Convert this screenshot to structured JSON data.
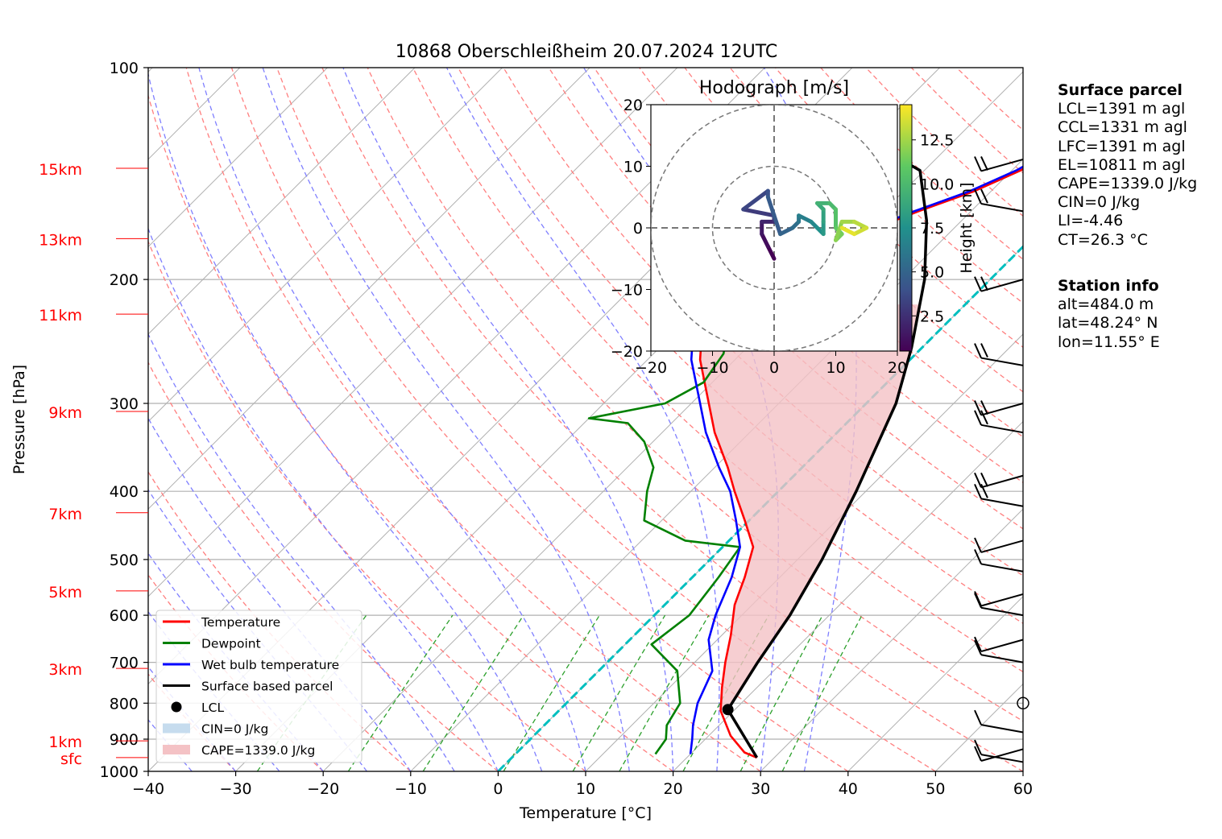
{
  "chart_data": {
    "type": "line",
    "title": "10868 Oberschleißheim 20.07.2024 12UTC",
    "xlabel": "Temperature [°C]",
    "ylabel": "Pressure [hPa]",
    "xlim": [
      -40,
      60
    ],
    "ylim": [
      1000,
      100
    ],
    "y_scale": "log",
    "x_ticks": [
      -40,
      -30,
      -20,
      -10,
      0,
      10,
      20,
      30,
      40,
      50,
      60
    ],
    "y_ticks": [
      100,
      200,
      300,
      400,
      500,
      600,
      700,
      800,
      900,
      1000
    ],
    "height_labels": [
      {
        "label": "15km",
        "p": 139
      },
      {
        "label": "13km",
        "p": 175
      },
      {
        "label": "11km",
        "p": 224
      },
      {
        "label": "9km",
        "p": 308
      },
      {
        "label": "7km",
        "p": 429
      },
      {
        "label": "5km",
        "p": 554
      },
      {
        "label": "3km",
        "p": 714
      },
      {
        "label": "1km",
        "p": 905
      },
      {
        "label": "sfc",
        "p": 956
      }
    ],
    "series": [
      {
        "name": "Temperature",
        "color": "#ff0000",
        "points": [
          [
            28.0,
            956
          ],
          [
            26.0,
            940
          ],
          [
            22.5,
            890
          ],
          [
            18.5,
            820
          ],
          [
            16.0,
            760
          ],
          [
            13.5,
            700
          ],
          [
            11.0,
            640
          ],
          [
            8.0,
            580
          ],
          [
            6.0,
            530
          ],
          [
            3.5,
            480
          ],
          [
            -0.5,
            440
          ],
          [
            -5.0,
            400
          ],
          [
            -8.5,
            370
          ],
          [
            -14.0,
            330
          ],
          [
            -18.0,
            300
          ],
          [
            -24.0,
            260
          ],
          [
            -28.0,
            230
          ],
          [
            -30.0,
            215
          ],
          [
            -29.0,
            200
          ],
          [
            -23.5,
            195
          ],
          [
            -22.5,
            180
          ],
          [
            -20.0,
            172
          ],
          [
            -16.0,
            160
          ],
          [
            -12.0,
            150
          ],
          [
            -9.0,
            140
          ],
          [
            -8.0,
            135
          ]
        ]
      },
      {
        "name": "Dewpoint",
        "color": "#008000",
        "points": [
          [
            16.0,
            945
          ],
          [
            15.5,
            900
          ],
          [
            14.0,
            860
          ],
          [
            13.0,
            800
          ],
          [
            9.0,
            720
          ],
          [
            3.0,
            660
          ],
          [
            4.0,
            600
          ],
          [
            3.0,
            530
          ],
          [
            2.0,
            480
          ],
          [
            -5.0,
            470
          ],
          [
            -12.0,
            440
          ],
          [
            -15.0,
            400
          ],
          [
            -17.0,
            370
          ],
          [
            -21.0,
            340
          ],
          [
            -25.0,
            320
          ],
          [
            -30.0,
            315
          ],
          [
            -23.0,
            300
          ],
          [
            -21.0,
            280
          ],
          [
            -22.0,
            255
          ],
          [
            -25.0,
            230
          ],
          [
            -27.0,
            215
          ],
          [
            -28.0,
            200
          ],
          [
            -33.0,
            190
          ],
          [
            -37.0,
            172
          ],
          [
            -36.0,
            160
          ],
          [
            -33.0,
            148
          ],
          [
            -29.0,
            135
          ]
        ]
      },
      {
        "name": "Wet bulb temperature",
        "color": "#0000ff",
        "points": [
          [
            20.0,
            945
          ],
          [
            18.5,
            900
          ],
          [
            17.0,
            860
          ],
          [
            15.0,
            800
          ],
          [
            13.0,
            720
          ],
          [
            9.0,
            650
          ],
          [
            7.0,
            600
          ],
          [
            4.5,
            530
          ],
          [
            2.0,
            480
          ],
          [
            -1.5,
            440
          ],
          [
            -5.5,
            400
          ],
          [
            -9.5,
            370
          ],
          [
            -15.0,
            330
          ],
          [
            -19.0,
            300
          ],
          [
            -25.0,
            260
          ],
          [
            -29.0,
            230
          ],
          [
            -30.5,
            215
          ],
          [
            -29.5,
            200
          ],
          [
            -24.0,
            195
          ],
          [
            -23.0,
            180
          ],
          [
            -20.5,
            172
          ],
          [
            -16.5,
            160
          ],
          [
            -12.5,
            150
          ],
          [
            -9.5,
            140
          ],
          [
            -8.5,
            135
          ]
        ]
      },
      {
        "name": "Surface based parcel",
        "color": "#000000",
        "points": [
          [
            28.0,
            956
          ],
          [
            19.2,
            817
          ],
          [
            17.2,
            700
          ],
          [
            15.5,
            600
          ],
          [
            12.8,
            500
          ],
          [
            8.9,
            400
          ],
          [
            3.4,
            300
          ],
          [
            -1.2,
            250
          ],
          [
            -7.5,
            200
          ],
          [
            -14.0,
            165
          ],
          [
            -20.5,
            140
          ],
          [
            -24.0,
            135
          ]
        ]
      }
    ],
    "lcl": {
      "t": 19.2,
      "p": 817
    },
    "legend": {
      "placement": "bottom-left",
      "entries": [
        "Temperature",
        "Dewpoint",
        "Wet bulb temperature",
        "Surface based parcel",
        "LCL",
        "CIN=0 J/kg",
        "CAPE=1339.0 J/kg"
      ]
    },
    "hodograph": {
      "title": "Hodograph [m/s]",
      "xlim": [
        -20,
        20
      ],
      "ylim": [
        -20,
        20
      ],
      "ticks": [
        -20,
        -10,
        0,
        10,
        20
      ],
      "ring_radii": [
        10,
        20
      ],
      "colorbar_label": "Height [km]",
      "colorbar_ticks": [
        "2.5",
        "5.0",
        "7.5",
        "10.0",
        "12.5"
      ],
      "height_range": [
        0.5,
        14.5
      ],
      "trace": [
        {
          "u": 0,
          "v": -5,
          "h": 0.5
        },
        {
          "u": -1,
          "v": -3,
          "h": 1.0
        },
        {
          "u": -2,
          "v": -1,
          "h": 1.5
        },
        {
          "u": -2,
          "v": 1,
          "h": 2.0
        },
        {
          "u": 0,
          "v": 1,
          "h": 2.5
        },
        {
          "u": 0,
          "v": 2,
          "h": 3.0
        },
        {
          "u": -5,
          "v": 3,
          "h": 3.5
        },
        {
          "u": -1,
          "v": 6,
          "h": 4.0
        },
        {
          "u": -1,
          "v": 5,
          "h": 4.5
        },
        {
          "u": 1,
          "v": -1,
          "h": 5.0
        },
        {
          "u": 3,
          "v": 0,
          "h": 5.5
        },
        {
          "u": 4,
          "v": 1,
          "h": 6.0
        },
        {
          "u": 4,
          "v": 2,
          "h": 6.5
        },
        {
          "u": 6,
          "v": 1,
          "h": 7.0
        },
        {
          "u": 7,
          "v": 0,
          "h": 7.5
        },
        {
          "u": 8,
          "v": -1,
          "h": 8.0
        },
        {
          "u": 8,
          "v": 1,
          "h": 8.5
        },
        {
          "u": 8,
          "v": 3,
          "h": 9.0
        },
        {
          "u": 7,
          "v": 4,
          "h": 9.5
        },
        {
          "u": 9,
          "v": 4,
          "h": 10.0
        },
        {
          "u": 10,
          "v": 3,
          "h": 10.5
        },
        {
          "u": 10,
          "v": 0,
          "h": 11.0
        },
        {
          "u": 11,
          "v": -1,
          "h": 11.5
        },
        {
          "u": 10,
          "v": -2,
          "h": 12.0
        },
        {
          "u": 11,
          "v": 1,
          "h": 12.5
        },
        {
          "u": 13,
          "v": 1,
          "h": 13.0
        },
        {
          "u": 15,
          "v": 0,
          "h": 13.5
        },
        {
          "u": 13,
          "v": -1,
          "h": 14.0
        },
        {
          "u": 11,
          "v": 0,
          "h": 14.5
        }
      ]
    },
    "wind_barbs_pressures": [
      135,
      160,
      200,
      265,
      300,
      330,
      380,
      420,
      470,
      520,
      560,
      600,
      650,
      700,
      800,
      880,
      930,
      970
    ]
  },
  "surface_parcel": {
    "heading": "Surface parcel",
    "lines": [
      "LCL=1391 m agl",
      "CCL=1331 m agl",
      "LFC=1391 m agl",
      "EL=10811 m agl",
      "CAPE=1339.0 J/kg",
      "CIN=0 J/kg",
      "LI=-4.46",
      "CT=26.3 °C"
    ]
  },
  "station_info": {
    "heading": "Station info",
    "lines": [
      "alt=484.0 m",
      "lat=48.24° N",
      "lon=11.55° E"
    ]
  },
  "colors": {
    "temperature": "#ff0000",
    "dewpoint": "#008000",
    "wetbulb": "#0000ff",
    "parcel": "#000000",
    "cape_fill": "#f4c2c5",
    "cin_fill": "#c6dcee",
    "dry_adiabat": "#ff7f7f",
    "moist_adiabat": "#7f7fff",
    "mixing_ratio": "#2ca02c",
    "isotherm": "#b0b0b0",
    "zero_isotherm": "#00bfbf",
    "height_label": "#ff0000"
  }
}
